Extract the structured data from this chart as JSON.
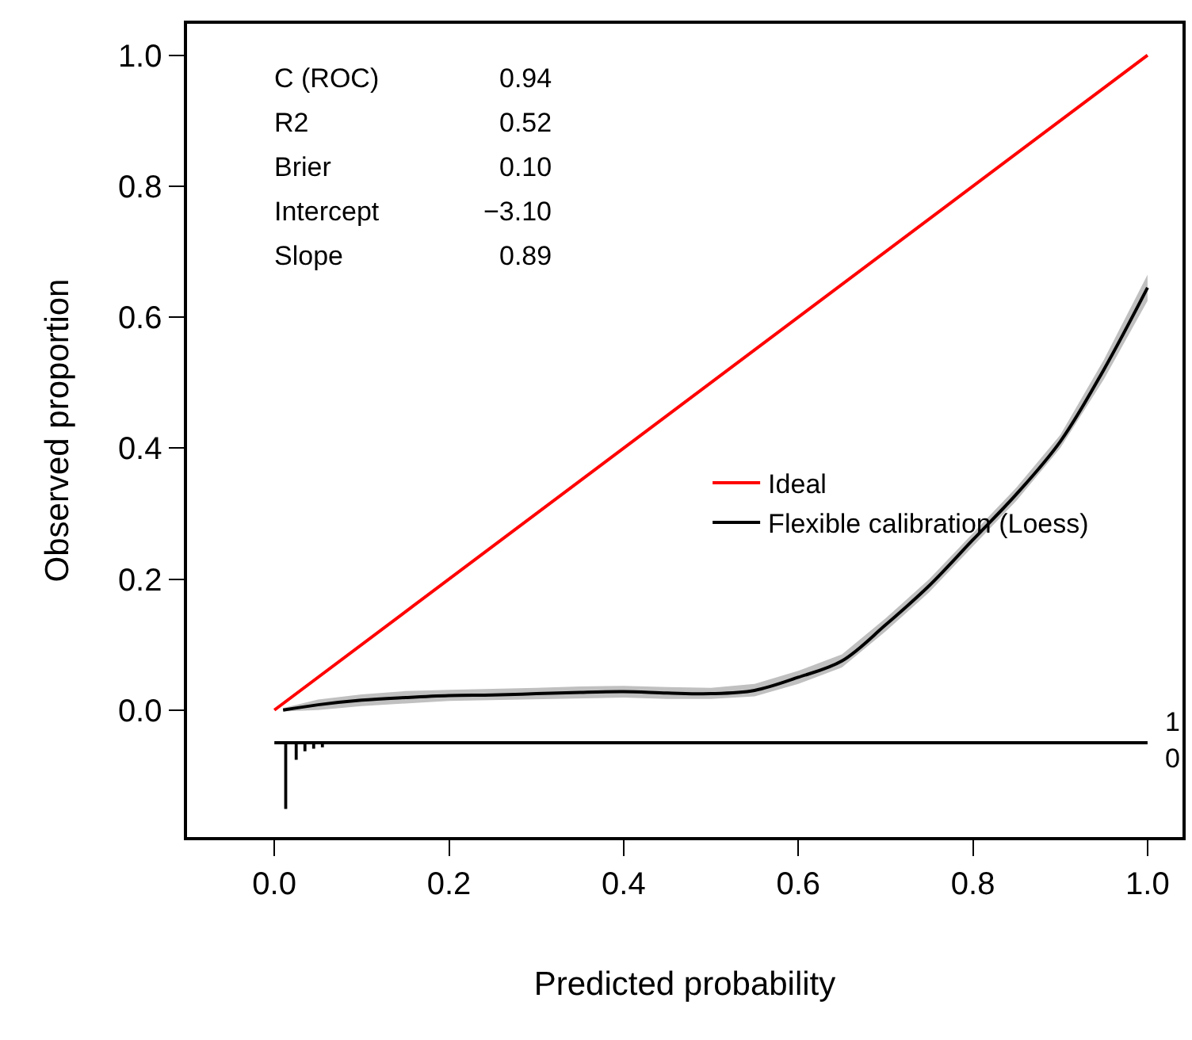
{
  "chart_data": {
    "type": "line",
    "xlabel": "Predicted probability",
    "ylabel": "Observed proportion",
    "xlim": [
      -0.1,
      1.04
    ],
    "ylim": [
      -0.194,
      1.048
    ],
    "xticks": [
      {
        "value": 0,
        "label": "0.0"
      },
      0.2,
      0.4,
      0.6,
      0.8,
      {
        "value": 1,
        "label": "1.0"
      }
    ],
    "yticks": [
      {
        "value": 0,
        "label": "0.0"
      },
      0.2,
      0.4,
      0.6,
      0.8,
      {
        "value": 1,
        "label": "1.0"
      }
    ],
    "legend": "bottom right",
    "marker": "none",
    "line_style": "solid",
    "series": [
      {
        "name": "Ideal",
        "color": "#ff0000",
        "x": [
          0,
          1
        ],
        "values": [
          0,
          1
        ]
      },
      {
        "name": "Flexible calibration (Loess)",
        "color": "#000000",
        "x": [
          0.01,
          0.05,
          0.1,
          0.15,
          0.2,
          0.25,
          0.3,
          0.35,
          0.4,
          0.45,
          0.5,
          0.55,
          0.6,
          0.65,
          0.7,
          0.75,
          0.8,
          0.85,
          0.9,
          0.95,
          1.0
        ],
        "values": [
          0.0,
          0.008,
          0.015,
          0.019,
          0.022,
          0.023,
          0.025,
          0.027,
          0.028,
          0.026,
          0.025,
          0.03,
          0.05,
          0.075,
          0.13,
          0.19,
          0.26,
          0.33,
          0.41,
          0.52,
          0.645
        ],
        "lower": [
          -0.002,
          0.0,
          0.006,
          0.01,
          0.014,
          0.015,
          0.017,
          0.018,
          0.019,
          0.017,
          0.017,
          0.021,
          0.04,
          0.065,
          0.12,
          0.18,
          0.25,
          0.32,
          0.4,
          0.505,
          0.625
        ],
        "upper": [
          0.003,
          0.016,
          0.024,
          0.029,
          0.031,
          0.032,
          0.034,
          0.036,
          0.037,
          0.035,
          0.034,
          0.04,
          0.06,
          0.085,
          0.14,
          0.2,
          0.27,
          0.34,
          0.42,
          0.535,
          0.665
        ]
      },
      {
        "color": "#000000",
        "x": [
          0,
          1
        ],
        "values": [
          -0.05,
          -0.05
        ]
      },
      {
        "type": "bar",
        "color": "#000000",
        "x": [
          0.013,
          0.025,
          0.035,
          0.045,
          0.055
        ],
        "values": [
          -0.1,
          -0.025,
          -0.012,
          -0.008,
          -0.006
        ],
        "base": [
          -0.05,
          -0.05,
          -0.05,
          -0.05,
          -0.05
        ]
      }
    ],
    "annotations": [
      "C (ROC)",
      "0.94",
      "R2",
      "0.52",
      "Brier",
      "0.10",
      "Intercept",
      "−3.10",
      "Slope",
      "0.89",
      "1",
      "0"
    ]
  }
}
